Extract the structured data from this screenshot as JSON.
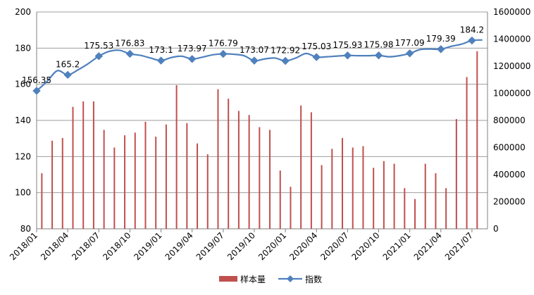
{
  "chart_data": {
    "type": "bar+line",
    "x": [
      "2018/01",
      "2018/02",
      "2018/03",
      "2018/04",
      "2018/05",
      "2018/06",
      "2018/07",
      "2018/08",
      "2018/09",
      "2018/10",
      "2018/11",
      "2018/12",
      "2019/01",
      "2019/02",
      "2019/03",
      "2019/04",
      "2019/05",
      "2019/06",
      "2019/07",
      "2019/08",
      "2019/09",
      "2019/10",
      "2019/11",
      "2019/12",
      "2020/01",
      "2020/02",
      "2020/03",
      "2020/04",
      "2020/05",
      "2020/06",
      "2020/07",
      "2020/08",
      "2020/09",
      "2020/10",
      "2020/11",
      "2020/12",
      "2021/01",
      "2021/02",
      "2021/03",
      "2021/04",
      "2021/05",
      "2021/06",
      "2021/07",
      "2021/08"
    ],
    "x_tick_labels": [
      "2018/01",
      "2018/04",
      "2018/07",
      "2018/10",
      "2019/01",
      "2019/04",
      "2019/07",
      "2019/10",
      "2020/01",
      "2020/04",
      "2020/07",
      "2020/10",
      "2021/01",
      "2021/04",
      "2021/07"
    ],
    "series": [
      {
        "name": "样本量",
        "type": "bar",
        "axis": "right",
        "color": "#c0504d",
        "values": [
          410000,
          650000,
          670000,
          900000,
          940000,
          940000,
          730000,
          600000,
          690000,
          710000,
          790000,
          680000,
          770000,
          1060000,
          780000,
          630000,
          550000,
          1030000,
          960000,
          870000,
          840000,
          750000,
          730000,
          430000,
          310000,
          910000,
          860000,
          470000,
          590000,
          670000,
          600000,
          610000,
          450000,
          500000,
          480000,
          300000,
          220000,
          480000,
          410000,
          300000,
          810000,
          1120000,
          1310000,
          0
        ]
      },
      {
        "name": "指数",
        "type": "line",
        "axis": "left",
        "color": "#4f81bd",
        "values": [
          156.35,
          161.5,
          167.5,
          165.2,
          168.0,
          171.5,
          175.53,
          178.2,
          178.8,
          176.83,
          176.0,
          174.5,
          173.1,
          174.8,
          175.5,
          173.97,
          175.0,
          176.3,
          176.79,
          176.6,
          175.8,
          173.07,
          174.0,
          174.5,
          172.92,
          174.5,
          177.0,
          175.03,
          175.2,
          175.6,
          175.93,
          175.8,
          175.8,
          175.98,
          175.2,
          175.8,
          177.09,
          179.2,
          179.5,
          179.39,
          181.0,
          182.2,
          184.2,
          184.5
        ],
        "labeled_points": [
          {
            "index": 0,
            "label": "156.35"
          },
          {
            "index": 3,
            "label": "165.2"
          },
          {
            "index": 6,
            "label": "175.53"
          },
          {
            "index": 9,
            "label": "176.83"
          },
          {
            "index": 12,
            "label": "173.1"
          },
          {
            "index": 15,
            "label": "173.97"
          },
          {
            "index": 18,
            "label": "176.79"
          },
          {
            "index": 21,
            "label": "173.07"
          },
          {
            "index": 24,
            "label": "172.92"
          },
          {
            "index": 27,
            "label": "175.03"
          },
          {
            "index": 30,
            "label": "175.93"
          },
          {
            "index": 33,
            "label": "175.98"
          },
          {
            "index": 36,
            "label": "177.09"
          },
          {
            "index": 39,
            "label": "179.39"
          },
          {
            "index": 42,
            "label": "184.2"
          }
        ]
      }
    ],
    "y_left": {
      "min": 80,
      "max": 200,
      "ticks": [
        80,
        100,
        120,
        140,
        160,
        180,
        200
      ]
    },
    "y_right": {
      "min": 0,
      "max": 1600000,
      "ticks": [
        0,
        200000,
        400000,
        600000,
        800000,
        1000000,
        1200000,
        1400000,
        1600000
      ]
    },
    "grid": true,
    "legend_position": "bottom-center",
    "title": "",
    "xlabel": "",
    "ylabel": ""
  }
}
